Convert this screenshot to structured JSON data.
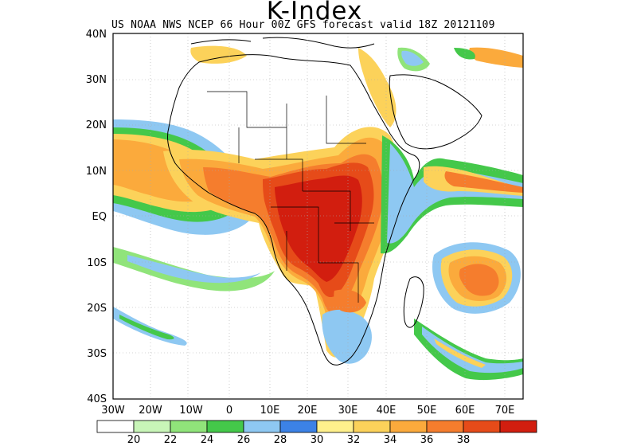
{
  "title": "K-Index",
  "subtitle": "US NOAA NWS NCEP 66 Hour 00Z GFS forecast valid 18Z 20121109",
  "lat_ticks": [
    "40N",
    "30N",
    "20N",
    "10N",
    "EQ",
    "10S",
    "20S",
    "30S",
    "40S"
  ],
  "lon_ticks": [
    "30W",
    "20W",
    "10W",
    "0",
    "10E",
    "20E",
    "30E",
    "40E",
    "50E",
    "60E",
    "70E"
  ],
  "colorbar": {
    "labels": [
      "20",
      "22",
      "24",
      "26",
      "28",
      "30",
      "32",
      "34",
      "36",
      "38"
    ],
    "colors": [
      "#ffffff",
      "#c8f5b8",
      "#90e47a",
      "#44c84a",
      "#8ec8f2",
      "#3c82e6",
      "#fff08c",
      "#fcd25a",
      "#fbaa3c",
      "#f57d2d",
      "#e64b19",
      "#d21e0f"
    ]
  },
  "palette": {
    "k20_22": "#c8f5b8",
    "k22_24": "#90e47a",
    "k24_26": "#44c84a",
    "k26_28": "#8ec8f2",
    "k28_30": "#3c82e6",
    "k30_32": "#fff08c",
    "k32_34": "#fcd25a",
    "k34_36": "#fbaa3c",
    "k36_38": "#f57d2d",
    "k38_40": "#e64b19",
    "k40p": "#d21e0f",
    "land_outline": "#000000"
  }
}
